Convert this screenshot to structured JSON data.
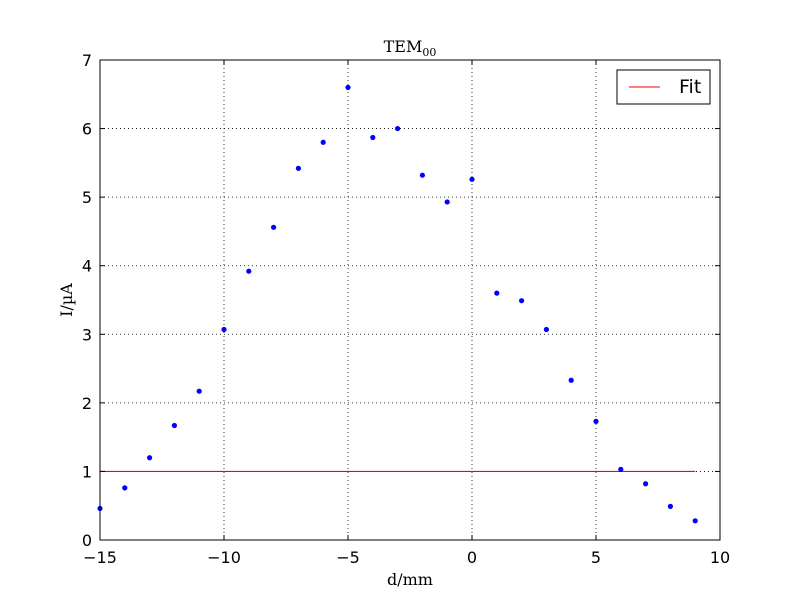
{
  "chart_data": {
    "type": "scatter",
    "title": "TEM",
    "title_subscript": "00",
    "xlabel": "d/mm",
    "ylabel": "I/µA",
    "xlim": [
      -15,
      10
    ],
    "ylim": [
      0,
      7
    ],
    "x_ticks": [
      -15,
      -10,
      -5,
      0,
      5,
      10
    ],
    "x_tick_labels": [
      "−15",
      "−10",
      "−5",
      "0",
      "5",
      "10"
    ],
    "y_ticks": [
      0,
      1,
      2,
      3,
      4,
      5,
      6,
      7
    ],
    "y_tick_labels": [
      "0",
      "1",
      "2",
      "3",
      "4",
      "5",
      "6",
      "7"
    ],
    "grid": true,
    "grid_style": "dotted",
    "legend_position": "top-right",
    "series": [
      {
        "kind": "points",
        "color": "#0000ff",
        "x": [
          -15,
          -14,
          -13,
          -12,
          -11,
          -10,
          -9,
          -8,
          -7,
          -6,
          -5,
          -4,
          -3,
          -2,
          -1,
          0,
          1,
          2,
          3,
          4,
          5,
          6,
          7,
          8,
          9
        ],
        "y": [
          0.46,
          0.76,
          1.2,
          1.67,
          2.17,
          3.07,
          3.92,
          4.56,
          5.42,
          5.8,
          6.6,
          5.87,
          6.0,
          5.32,
          4.93,
          5.26,
          3.6,
          3.49,
          3.07,
          2.33,
          1.73,
          1.03,
          0.82,
          0.49,
          0.28
        ]
      },
      {
        "kind": "line",
        "name": "Fit",
        "color": "#ff0000",
        "x": [
          -15,
          9
        ],
        "y": [
          1.0,
          1.0
        ]
      }
    ]
  }
}
